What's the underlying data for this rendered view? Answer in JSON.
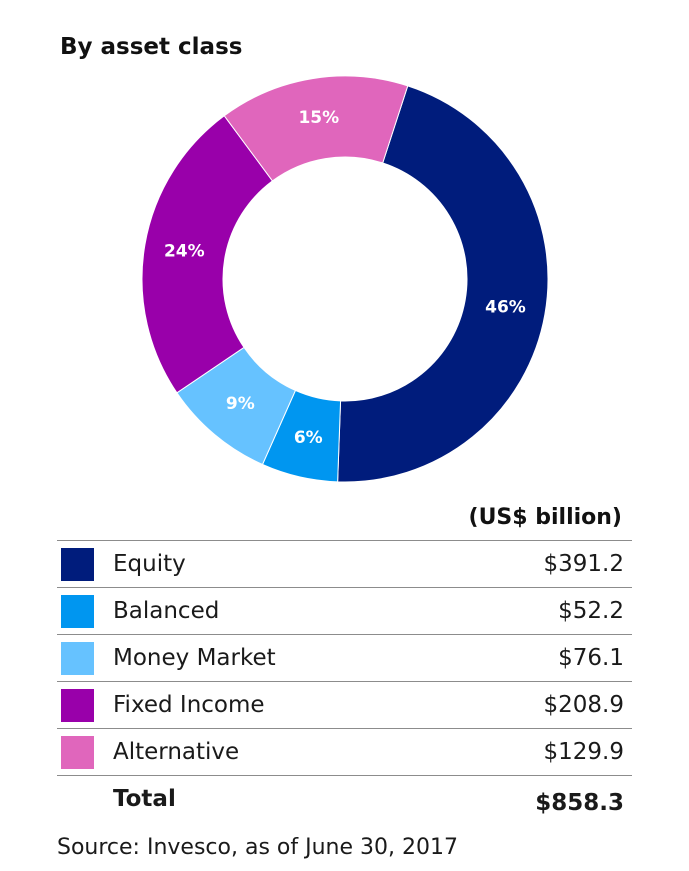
{
  "title": "By asset class",
  "unit_label": "(US$ billion)",
  "colors": {
    "equity": "#001c7c",
    "balanced": "#0096f0",
    "money_market": "#66c2ff",
    "fixed_income": "#9900aa",
    "alternative": "#e066bc"
  },
  "chart_data": {
    "type": "pie",
    "donut": true,
    "title": "By asset class",
    "categories": [
      "Equity",
      "Balanced",
      "Money Market",
      "Fixed Income",
      "Alternative"
    ],
    "values": [
      391.2,
      52.2,
      76.1,
      208.9,
      129.9
    ],
    "percent_labels": [
      "46%",
      "6%",
      "9%",
      "24%",
      "15%"
    ],
    "colors": [
      "#001c7c",
      "#0096f0",
      "#66c2ff",
      "#9900aa",
      "#e066bc"
    ],
    "start_angle_deg": 18,
    "direction": "clockwise"
  },
  "legend": [
    {
      "label": "Equity",
      "value": "$391.2",
      "color": "#001c7c"
    },
    {
      "label": "Balanced",
      "value": "$52.2",
      "color": "#0096f0"
    },
    {
      "label": "Money Market",
      "value": "$76.1",
      "color": "#66c2ff"
    },
    {
      "label": "Fixed Income",
      "value": "$208.9",
      "color": "#9900aa"
    },
    {
      "label": "Alternative",
      "value": "$129.9",
      "color": "#e066bc"
    }
  ],
  "total": {
    "label": "Total",
    "value": "$858.3"
  },
  "source": "Source: Invesco, as of June 30, 2017"
}
